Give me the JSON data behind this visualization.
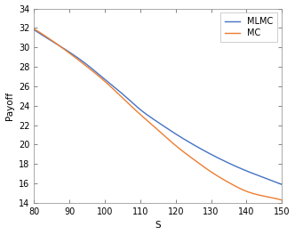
{
  "xlim": [
    80,
    150
  ],
  "ylim": [
    14,
    34
  ],
  "xticks": [
    80,
    90,
    100,
    110,
    120,
    130,
    140,
    150
  ],
  "yticks": [
    14,
    16,
    18,
    20,
    22,
    24,
    26,
    28,
    30,
    32,
    34
  ],
  "xlabel": "S",
  "ylabel": "Payoff",
  "mlmc_color": "#4472c4",
  "mc_color": "#ed7d31",
  "legend_labels": [
    "MLMC",
    "MC"
  ],
  "line_width": 1.0,
  "background_color": "#ffffff",
  "x_ctrl": [
    80,
    90,
    95,
    100,
    105,
    110,
    115,
    120,
    125,
    130,
    135,
    140,
    145,
    150
  ],
  "mlmc_ctrl": [
    31.8,
    29.5,
    28.2,
    26.7,
    25.2,
    23.6,
    22.3,
    21.1,
    20.0,
    19.0,
    18.1,
    17.3,
    16.6,
    15.9
  ],
  "mc_ctrl": [
    31.9,
    29.4,
    28.0,
    26.5,
    24.8,
    23.1,
    21.5,
    19.9,
    18.5,
    17.2,
    16.1,
    15.2,
    14.7,
    14.3
  ],
  "figsize": [
    3.32,
    2.64
  ],
  "dpi": 100
}
